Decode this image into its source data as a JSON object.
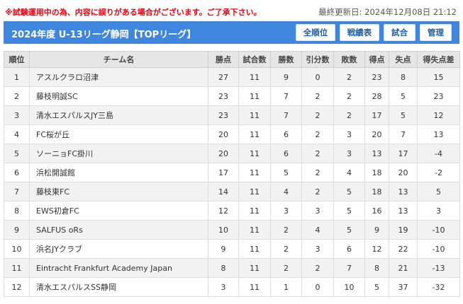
{
  "notice": "※試験運用中の為、内容に誤りがある場合がございます。ご了承下さい。",
  "updated": "最終更新日: 2024年12月08日 21:12",
  "title": "2024年度 U-13リーグ静岡【TOPリーグ】",
  "buttons": {
    "ranking": "全順位",
    "results": "戦績表",
    "matches": "試合",
    "manage": "管理"
  },
  "columns": [
    "順位",
    "チーム名",
    "勝点",
    "試合数",
    "勝数",
    "引分数",
    "敗数",
    "得点",
    "失点",
    "得失点差"
  ],
  "rows": [
    [
      "1",
      "アスルクラロ沼津",
      "27",
      "11",
      "9",
      "0",
      "2",
      "23",
      "8",
      "15"
    ],
    [
      "2",
      "藤枝明誠SC",
      "23",
      "11",
      "7",
      "2",
      "2",
      "28",
      "5",
      "23"
    ],
    [
      "3",
      "清水エスパルスJY三島",
      "23",
      "11",
      "7",
      "2",
      "2",
      "17",
      "5",
      "12"
    ],
    [
      "4",
      "FC桜が丘",
      "20",
      "11",
      "6",
      "2",
      "3",
      "20",
      "7",
      "13"
    ],
    [
      "5",
      "ソーニョFC掛川",
      "20",
      "11",
      "6",
      "2",
      "3",
      "13",
      "17",
      "-4"
    ],
    [
      "6",
      "浜松開誠館",
      "17",
      "11",
      "5",
      "2",
      "4",
      "18",
      "20",
      "-2"
    ],
    [
      "7",
      "藤枝東FC",
      "14",
      "11",
      "4",
      "2",
      "5",
      "18",
      "13",
      "5"
    ],
    [
      "8",
      "EWS初倉FC",
      "12",
      "11",
      "3",
      "3",
      "5",
      "16",
      "13",
      "3"
    ],
    [
      "9",
      "SALFUS oRs",
      "10",
      "11",
      "2",
      "4",
      "5",
      "9",
      "19",
      "-10"
    ],
    [
      "10",
      "浜名JYクラブ",
      "9",
      "11",
      "2",
      "3",
      "6",
      "12",
      "22",
      "-10"
    ],
    [
      "11",
      "Eintracht Frankfurt Academy Japan",
      "8",
      "11",
      "2",
      "2",
      "7",
      "8",
      "21",
      "-13"
    ],
    [
      "12",
      "清水エスパルスSS静岡",
      "3",
      "11",
      "1",
      "0",
      "10",
      "5",
      "37",
      "-32"
    ]
  ],
  "colors": {
    "title_bar": "#3f87de",
    "notice_text": "#e60012",
    "button_text": "#1f5fa8",
    "header_bg": "#e6e6e6",
    "row_alt_bg": "#f2f2f2"
  }
}
